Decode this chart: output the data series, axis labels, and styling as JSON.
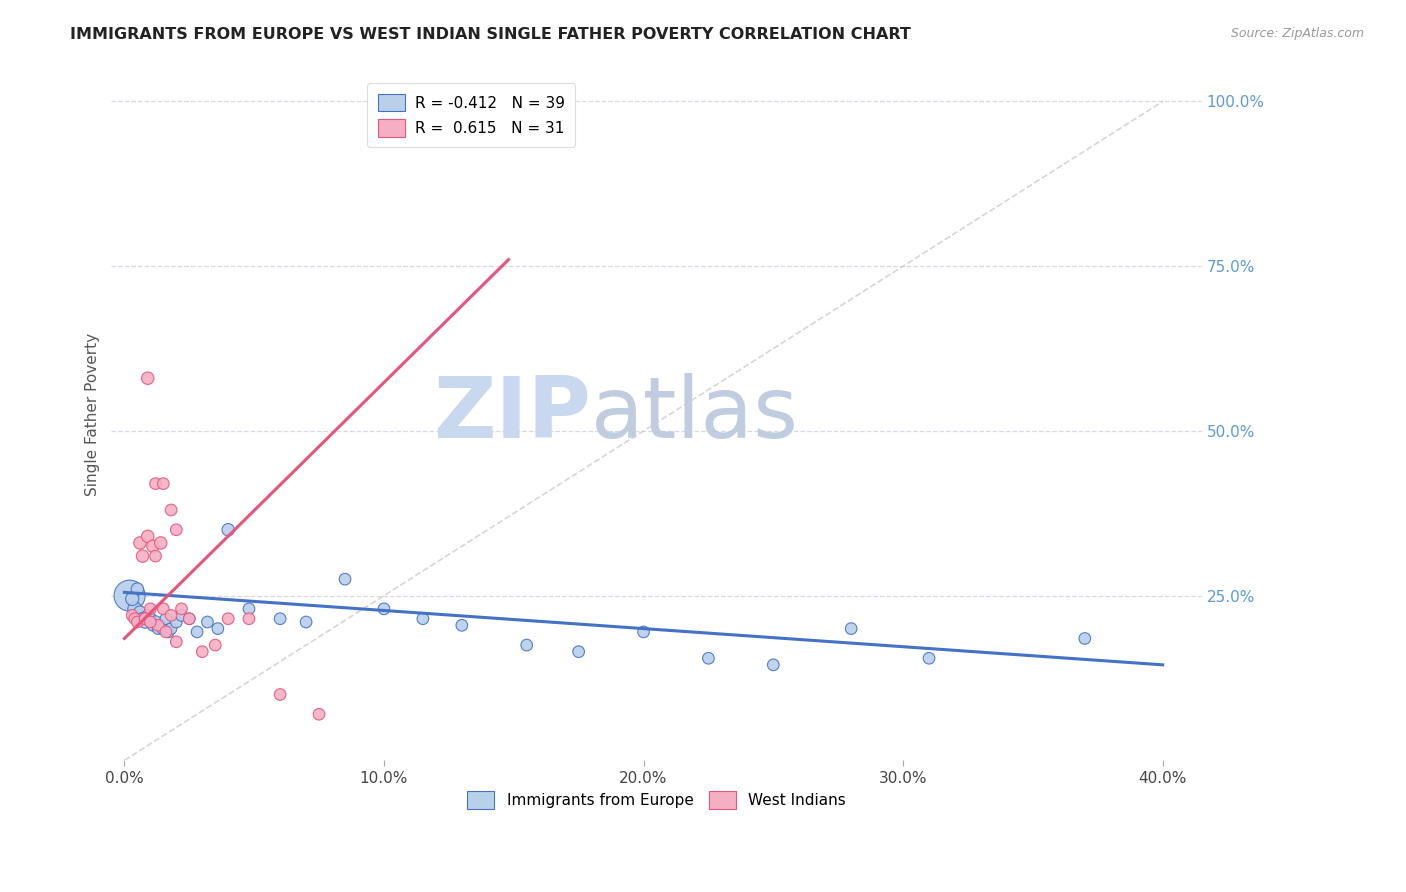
{
  "title": "IMMIGRANTS FROM EUROPE VS WEST INDIAN SINGLE FATHER POVERTY CORRELATION CHART",
  "source": "Source: ZipAtlas.com",
  "ylabel": "Single Father Poverty",
  "x_tick_labels": [
    "0.0%",
    "10.0%",
    "20.0%",
    "30.0%",
    "40.0%"
  ],
  "x_tick_vals": [
    0.0,
    0.1,
    0.2,
    0.3,
    0.4
  ],
  "y_tick_labels_right": [
    "100.0%",
    "75.0%",
    "50.0%",
    "25.0%"
  ],
  "y_tick_vals": [
    1.0,
    0.75,
    0.5,
    0.25
  ],
  "xlim": [
    -0.005,
    0.415
  ],
  "ylim": [
    0.0,
    1.05
  ],
  "legend_entries": [
    "Immigrants from Europe",
    "West Indians"
  ],
  "R_europe": -0.412,
  "N_europe": 39,
  "R_west_indian": 0.615,
  "N_west_indian": 31,
  "europe_color": "#b8d0ea",
  "west_indian_color": "#f5afc5",
  "europe_line_color": "#4472c4",
  "west_indian_line_color": "#e8557a",
  "ref_line_color": "#cccccc",
  "background_color": "#ffffff",
  "grid_color": "#d8d8e8",
  "title_color": "#222222",
  "right_label_color": "#5b9bd5",
  "watermark_zip_color": "#c8d8ee",
  "watermark_atlas_color": "#c0cce0",
  "europe_scatter_x": [
    0.002,
    0.004,
    0.005,
    0.006,
    0.007,
    0.008,
    0.009,
    0.01,
    0.011,
    0.012,
    0.013,
    0.014,
    0.015,
    0.016,
    0.017,
    0.018,
    0.02,
    0.022,
    0.025,
    0.028,
    0.032,
    0.036,
    0.04,
    0.048,
    0.06,
    0.07,
    0.085,
    0.1,
    0.115,
    0.13,
    0.155,
    0.175,
    0.2,
    0.225,
    0.25,
    0.28,
    0.31,
    0.37,
    0.003
  ],
  "europe_scatter_y": [
    0.25,
    0.23,
    0.26,
    0.225,
    0.215,
    0.21,
    0.22,
    0.215,
    0.205,
    0.21,
    0.2,
    0.205,
    0.2,
    0.215,
    0.195,
    0.2,
    0.21,
    0.22,
    0.215,
    0.195,
    0.21,
    0.2,
    0.35,
    0.23,
    0.215,
    0.21,
    0.275,
    0.23,
    0.215,
    0.205,
    0.175,
    0.165,
    0.195,
    0.155,
    0.145,
    0.2,
    0.155,
    0.185,
    0.245
  ],
  "europe_scatter_size": [
    500,
    100,
    80,
    80,
    80,
    80,
    70,
    80,
    70,
    80,
    70,
    70,
    80,
    70,
    70,
    70,
    70,
    70,
    70,
    70,
    70,
    70,
    80,
    70,
    70,
    70,
    70,
    70,
    70,
    70,
    70,
    70,
    70,
    70,
    70,
    70,
    70,
    70,
    90
  ],
  "wi_scatter_x": [
    0.003,
    0.004,
    0.005,
    0.006,
    0.007,
    0.008,
    0.009,
    0.01,
    0.011,
    0.012,
    0.013,
    0.014,
    0.015,
    0.016,
    0.018,
    0.02,
    0.022,
    0.025,
    0.03,
    0.035,
    0.04,
    0.048,
    0.06,
    0.075,
    0.009,
    0.012,
    0.015,
    0.018,
    0.02,
    0.008,
    0.01
  ],
  "wi_scatter_y": [
    0.22,
    0.215,
    0.21,
    0.33,
    0.31,
    0.215,
    0.34,
    0.23,
    0.325,
    0.31,
    0.205,
    0.33,
    0.23,
    0.195,
    0.22,
    0.18,
    0.23,
    0.215,
    0.165,
    0.175,
    0.215,
    0.215,
    0.1,
    0.07,
    0.58,
    0.42,
    0.42,
    0.38,
    0.35,
    0.215,
    0.21
  ],
  "wi_scatter_size": [
    70,
    70,
    70,
    80,
    80,
    70,
    80,
    70,
    80,
    70,
    70,
    80,
    70,
    70,
    70,
    70,
    70,
    70,
    70,
    70,
    70,
    70,
    70,
    70,
    80,
    70,
    70,
    70,
    70,
    70,
    70
  ],
  "europe_trend_x": [
    0.0,
    0.4
  ],
  "europe_trend_y": [
    0.255,
    0.145
  ],
  "wi_trend_x": [
    0.0,
    0.148
  ],
  "wi_trend_y": [
    0.185,
    0.76
  ],
  "ref_line_x": [
    0.0,
    0.4
  ],
  "ref_line_y": [
    0.0,
    1.0
  ]
}
